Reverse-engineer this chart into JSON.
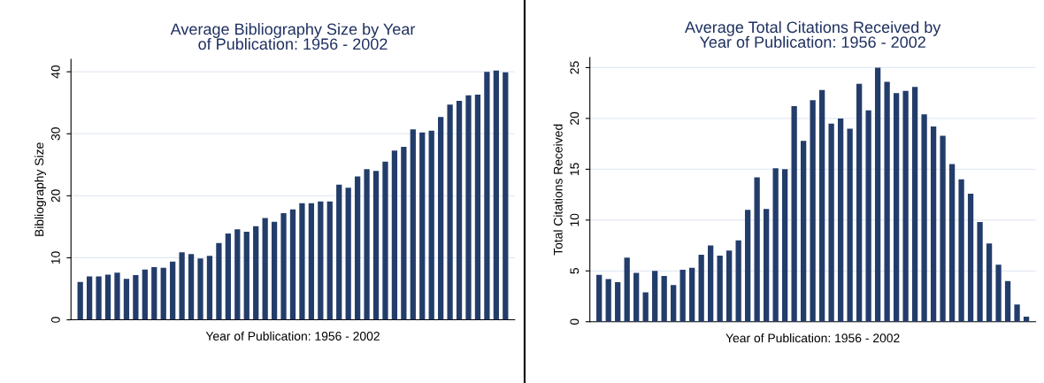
{
  "chart_data": [
    {
      "type": "bar",
      "title": "Average Bibliography Size by Year\nof Publication: 1956 - 2002",
      "xlabel": "Year of Publication: 1956 - 2002",
      "ylabel": "Bibliography Size",
      "categories": [
        null,
        null,
        null,
        null,
        null,
        null,
        null,
        null,
        null,
        null,
        null,
        null,
        null,
        null,
        null,
        null,
        null,
        null,
        null,
        null,
        null,
        null,
        null,
        null,
        null,
        null,
        null,
        null,
        null,
        null,
        null,
        null,
        null,
        null,
        null,
        null,
        null,
        null,
        null,
        null,
        null,
        null,
        null,
        null,
        null,
        null,
        null
      ],
      "values": [
        6.1,
        7.0,
        7.0,
        7.3,
        7.6,
        6.6,
        7.2,
        8.1,
        8.5,
        8.4,
        9.4,
        10.9,
        10.6,
        9.9,
        10.3,
        12.4,
        13.9,
        14.6,
        14.2,
        15.1,
        16.4,
        15.8,
        17.2,
        17.8,
        18.8,
        18.8,
        19.1,
        19.1,
        21.8,
        21.3,
        23.1,
        24.3,
        24.0,
        25.5,
        27.3,
        27.9,
        30.7,
        30.2,
        30.5,
        32.7,
        34.7,
        35.3,
        36.2,
        36.3,
        40.0,
        40.2,
        39.9
      ],
      "color": "#233d6b",
      "ylim": [
        0,
        42
      ],
      "yticks": [
        0,
        10,
        20,
        30,
        40
      ],
      "grid": "y"
    },
    {
      "type": "bar",
      "title": "Average Total Citations Received by\nYear of Publication: 1956 - 2002",
      "xlabel": "Year of Publication: 1956 - 2002",
      "ylabel": "Total Citations Received",
      "categories": [
        null,
        null,
        null,
        null,
        null,
        null,
        null,
        null,
        null,
        null,
        null,
        null,
        null,
        null,
        null,
        null,
        null,
        null,
        null,
        null,
        null,
        null,
        null,
        null,
        null,
        null,
        null,
        null,
        null,
        null,
        null,
        null,
        null,
        null,
        null,
        null,
        null,
        null,
        null,
        null,
        null,
        null,
        null,
        null,
        null,
        null,
        null
      ],
      "values": [
        4.6,
        4.2,
        3.9,
        6.3,
        4.8,
        2.9,
        5.0,
        4.5,
        3.6,
        5.1,
        5.3,
        6.6,
        7.5,
        6.5,
        7.0,
        8.0,
        11.0,
        14.2,
        11.1,
        15.1,
        15.0,
        21.2,
        17.8,
        21.8,
        22.8,
        19.5,
        20.0,
        19.0,
        23.4,
        20.8,
        25.0,
        23.6,
        22.5,
        22.7,
        23.1,
        20.4,
        19.2,
        18.3,
        15.5,
        14.0,
        12.6,
        9.8,
        7.7,
        5.6,
        4.0,
        1.7,
        0.5
      ],
      "color": "#233d6b",
      "ylim": [
        0,
        26
      ],
      "yticks": [
        0,
        5,
        10,
        15,
        20,
        25
      ],
      "grid": "y"
    }
  ]
}
